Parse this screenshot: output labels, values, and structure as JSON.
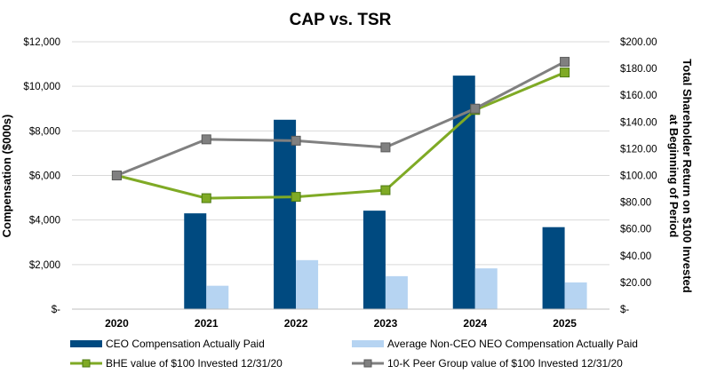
{
  "chart_data": {
    "type": "bar",
    "title": "CAP vs. TSR",
    "categories": [
      "2020",
      "2021",
      "2022",
      "2023",
      "2024",
      "2025"
    ],
    "ylabel": "Compensation ($000s)",
    "ylabel_right_line1": "Total Shareholder Return on $100 Invested",
    "ylabel_right_line2": "at Beginning of Period",
    "ylim": [
      0,
      12000
    ],
    "ylim_right": [
      0,
      200
    ],
    "yticks": [
      "$-",
      "$2,000",
      "$4,000",
      "$6,000",
      "$8,000",
      "$10,000",
      "$12,000"
    ],
    "yticks_right": [
      "$-",
      "$20.00",
      "$40.00",
      "$60.00",
      "$80.00",
      "$100.00",
      "$120.00",
      "$140.00",
      "$160.00",
      "$180.00",
      "$200.00"
    ],
    "grid": true,
    "legend_position": "bottom",
    "bar_series": [
      {
        "name": "CEO Compensation Actually Paid",
        "color": "#004a80",
        "values": [
          0,
          4300,
          8500,
          4420,
          10480,
          3680
        ]
      },
      {
        "name": "Average Non-CEO NEO Compensation Actually Paid",
        "color": "#b6d4f2",
        "values": [
          0,
          1050,
          2200,
          1480,
          1830,
          1200
        ]
      }
    ],
    "line_series": [
      {
        "name": "BHE value of $100 Invested 12/31/20",
        "color": "#7faa25",
        "values": [
          100,
          83,
          84,
          89,
          149,
          177
        ]
      },
      {
        "name": "10-K Peer Group value of $100 Invested 12/31/20",
        "color": "#808080",
        "values": [
          100,
          127,
          126,
          121,
          150,
          185
        ]
      }
    ]
  }
}
